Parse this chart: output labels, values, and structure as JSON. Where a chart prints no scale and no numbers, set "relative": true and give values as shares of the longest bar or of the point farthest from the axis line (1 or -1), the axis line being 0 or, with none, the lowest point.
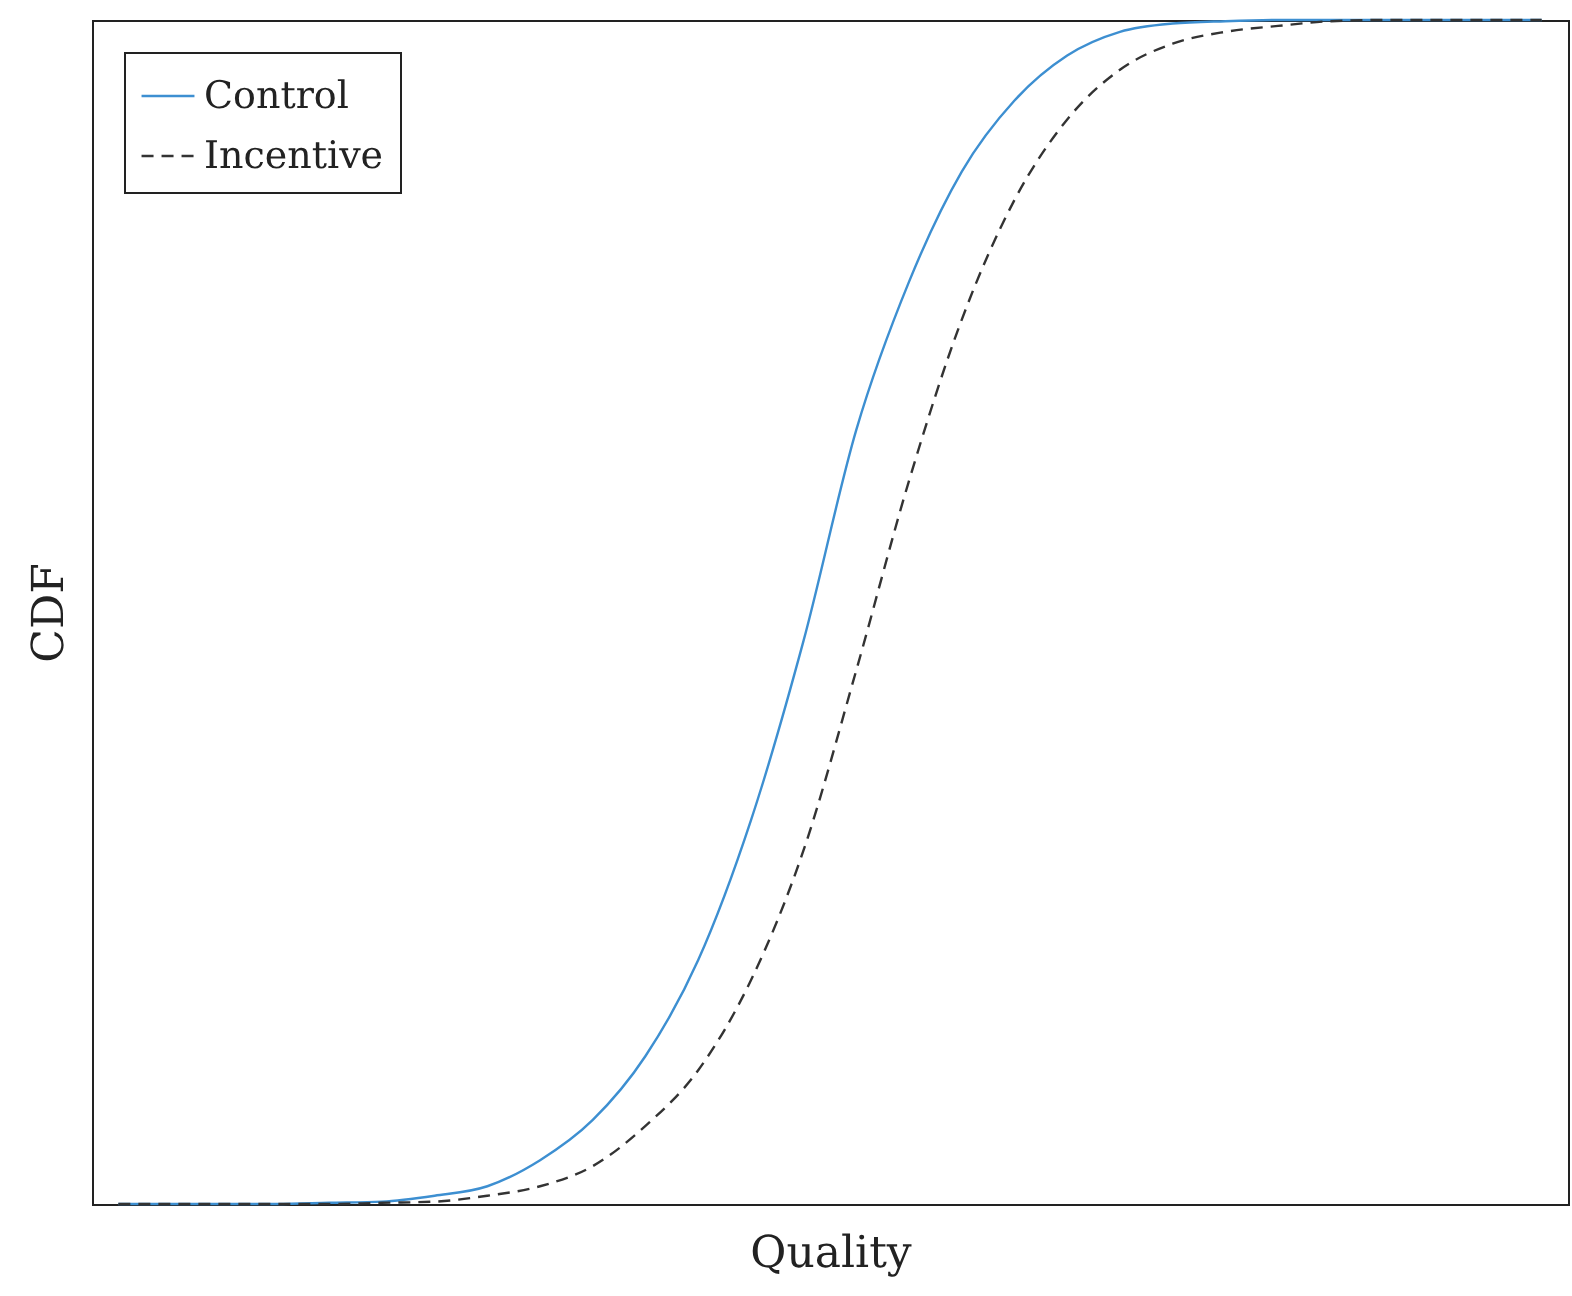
{
  "chart_data": {
    "type": "line",
    "relative": true,
    "xlabel": "Quality",
    "ylabel": "CDF",
    "legend": "top left",
    "categories": [
      null,
      null,
      null,
      null,
      null,
      null,
      null,
      null,
      null,
      null,
      null,
      null,
      null,
      null,
      null,
      null,
      null,
      null,
      null,
      null,
      null,
      null,
      null,
      null,
      null,
      null,
      null,
      null
    ],
    "series": [
      {
        "name": "Control",
        "color": "#3d8fd1",
        "line_style": "solid",
        "values": [
          0,
          0,
          0,
          0,
          0.001,
          0.002,
          0.007,
          0.015,
          0.037,
          0.071,
          0.125,
          0.206,
          0.324,
          0.476,
          0.654,
          0.779,
          0.872,
          0.932,
          0.97,
          0.99,
          0.997,
          0.999,
          1,
          1,
          1,
          1,
          1,
          1
        ]
      },
      {
        "name": "Incentive",
        "color": "#333333",
        "line_style": "dashed",
        "values": [
          0,
          0,
          0,
          0,
          0,
          0.001,
          0.002,
          0.007,
          0.015,
          0.032,
          0.066,
          0.113,
          0.189,
          0.299,
          0.451,
          0.611,
          0.747,
          0.848,
          0.916,
          0.958,
          0.98,
          0.99,
          0.995,
          0.999,
          1,
          1,
          1,
          1
        ]
      }
    ]
  }
}
